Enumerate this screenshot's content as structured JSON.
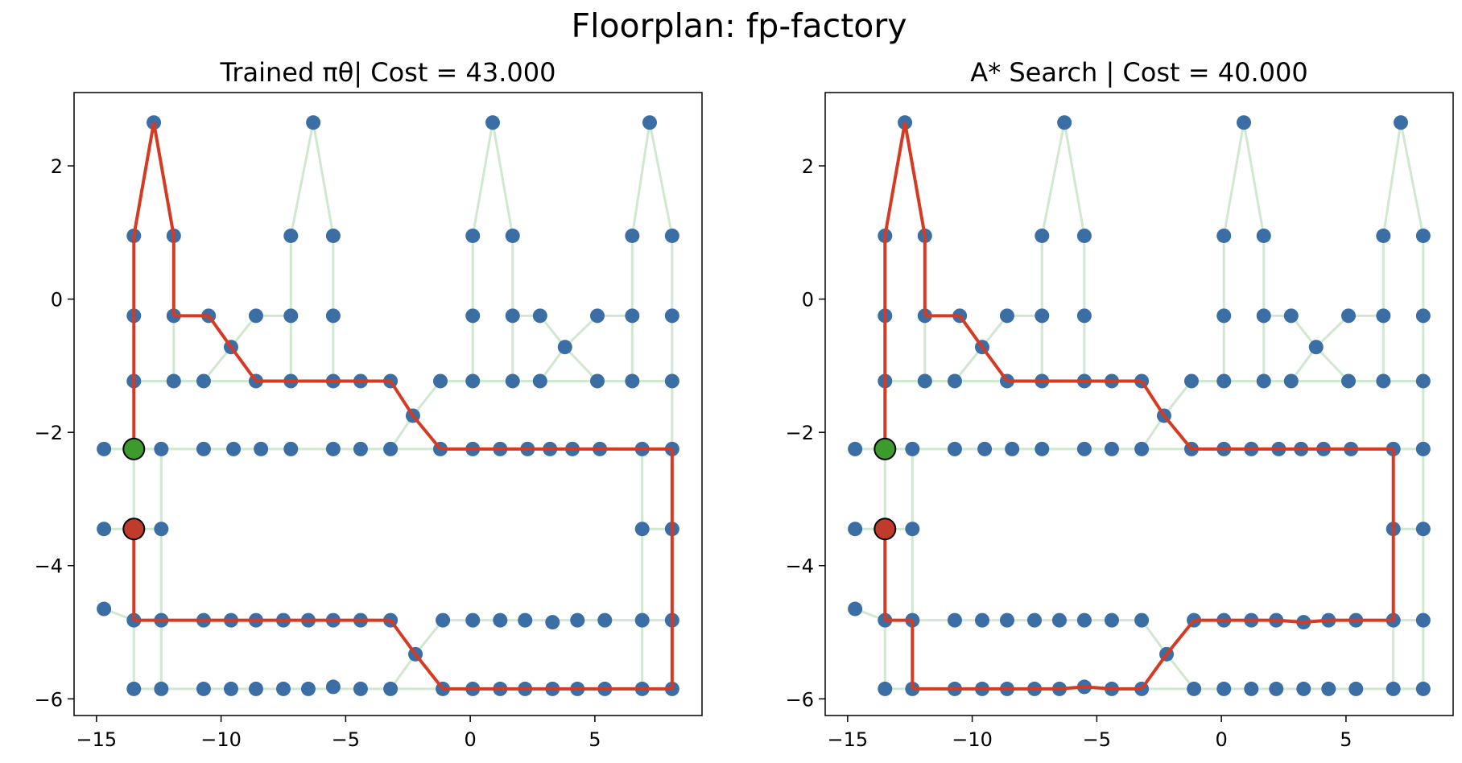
{
  "figure": {
    "title": "Floorplan: fp-factory"
  },
  "colors": {
    "node": "#3a6ea5",
    "edge": "#cfe8cf",
    "path": "#d63a22",
    "start": "#3d9a2c",
    "goal": "#c13b2c"
  },
  "graph": {
    "nodes": [
      [
        -12.7,
        2.65
      ],
      [
        -6.3,
        2.65
      ],
      [
        0.9,
        2.65
      ],
      [
        7.2,
        2.65
      ],
      [
        -13.5,
        0.95
      ],
      [
        -11.9,
        0.95
      ],
      [
        -7.2,
        0.95
      ],
      [
        -5.5,
        0.95
      ],
      [
        0.1,
        0.95
      ],
      [
        1.7,
        0.95
      ],
      [
        6.5,
        0.95
      ],
      [
        8.1,
        0.95
      ],
      [
        -13.5,
        -0.25
      ],
      [
        -11.9,
        -0.25
      ],
      [
        -10.5,
        -0.25
      ],
      [
        -8.6,
        -0.25
      ],
      [
        -7.2,
        -0.25
      ],
      [
        -5.5,
        -0.25
      ],
      [
        0.1,
        -0.25
      ],
      [
        1.7,
        -0.25
      ],
      [
        2.8,
        -0.25
      ],
      [
        5.1,
        -0.25
      ],
      [
        6.5,
        -0.25
      ],
      [
        8.1,
        -0.25
      ],
      [
        -9.6,
        -0.72
      ],
      [
        3.8,
        -0.72
      ],
      [
        -13.5,
        -1.23
      ],
      [
        -11.9,
        -1.23
      ],
      [
        -10.7,
        -1.23
      ],
      [
        -8.6,
        -1.23
      ],
      [
        -7.2,
        -1.23
      ],
      [
        -5.5,
        -1.23
      ],
      [
        -4.4,
        -1.23
      ],
      [
        -3.2,
        -1.23
      ],
      [
        -1.2,
        -1.23
      ],
      [
        0.1,
        -1.23
      ],
      [
        1.7,
        -1.23
      ],
      [
        2.8,
        -1.23
      ],
      [
        5.1,
        -1.23
      ],
      [
        6.5,
        -1.23
      ],
      [
        8.1,
        -1.23
      ],
      [
        -2.3,
        -1.75
      ],
      [
        -14.7,
        -2.25
      ],
      [
        -13.5,
        -2.25
      ],
      [
        -12.4,
        -2.25
      ],
      [
        -10.7,
        -2.25
      ],
      [
        -9.5,
        -2.25
      ],
      [
        -8.4,
        -2.25
      ],
      [
        -7.2,
        -2.25
      ],
      [
        -5.5,
        -2.25
      ],
      [
        -4.4,
        -2.25
      ],
      [
        -3.2,
        -2.25
      ],
      [
        -1.2,
        -2.25
      ],
      [
        0.1,
        -2.25
      ],
      [
        1.2,
        -2.25
      ],
      [
        2.3,
        -2.25
      ],
      [
        3.2,
        -2.25
      ],
      [
        4.1,
        -2.25
      ],
      [
        5.2,
        -2.25
      ],
      [
        6.9,
        -2.25
      ],
      [
        8.1,
        -2.25
      ],
      [
        -14.7,
        -3.45
      ],
      [
        -13.5,
        -3.45
      ],
      [
        -12.4,
        -3.45
      ],
      [
        6.9,
        -3.45
      ],
      [
        8.1,
        -3.45
      ],
      [
        -14.7,
        -4.65
      ],
      [
        -13.5,
        -4.82
      ],
      [
        -12.4,
        -4.82
      ],
      [
        -10.7,
        -4.82
      ],
      [
        -9.6,
        -4.82
      ],
      [
        -8.6,
        -4.82
      ],
      [
        -7.5,
        -4.82
      ],
      [
        -6.5,
        -4.82
      ],
      [
        -5.5,
        -4.82
      ],
      [
        -4.4,
        -4.82
      ],
      [
        -3.2,
        -4.82
      ],
      [
        -1.1,
        -4.82
      ],
      [
        0.1,
        -4.82
      ],
      [
        1.2,
        -4.82
      ],
      [
        2.2,
        -4.82
      ],
      [
        3.3,
        -4.85
      ],
      [
        4.3,
        -4.82
      ],
      [
        5.4,
        -4.82
      ],
      [
        6.9,
        -4.82
      ],
      [
        8.1,
        -4.82
      ],
      [
        -2.2,
        -5.33
      ],
      [
        -13.5,
        -5.85
      ],
      [
        -12.4,
        -5.85
      ],
      [
        -10.7,
        -5.85
      ],
      [
        -9.6,
        -5.85
      ],
      [
        -8.6,
        -5.85
      ],
      [
        -7.5,
        -5.85
      ],
      [
        -6.5,
        -5.85
      ],
      [
        -5.5,
        -5.82
      ],
      [
        -4.4,
        -5.85
      ],
      [
        -3.2,
        -5.85
      ],
      [
        -1.1,
        -5.85
      ],
      [
        0.1,
        -5.85
      ],
      [
        1.2,
        -5.85
      ],
      [
        2.2,
        -5.85
      ],
      [
        3.3,
        -5.85
      ],
      [
        4.3,
        -5.85
      ],
      [
        5.4,
        -5.85
      ],
      [
        6.9,
        -5.85
      ],
      [
        8.1,
        -5.85
      ]
    ],
    "edges": [
      [
        [
          -13.5,
          -2.25
        ],
        [
          -13.5,
          0.95
        ]
      ],
      [
        [
          -13.5,
          0.95
        ],
        [
          -12.7,
          2.65
        ]
      ],
      [
        [
          -12.7,
          2.65
        ],
        [
          -11.9,
          0.95
        ]
      ],
      [
        [
          -11.9,
          0.95
        ],
        [
          -11.9,
          -1.23
        ]
      ],
      [
        [
          -11.9,
          -0.25
        ],
        [
          -10.5,
          -0.25
        ]
      ],
      [
        [
          -8.6,
          -0.25
        ],
        [
          -7.2,
          -0.25
        ]
      ],
      [
        [
          -7.2,
          -0.25
        ],
        [
          -7.2,
          0.95
        ]
      ],
      [
        [
          -7.2,
          0.95
        ],
        [
          -6.3,
          2.65
        ]
      ],
      [
        [
          -6.3,
          2.65
        ],
        [
          -5.5,
          0.95
        ]
      ],
      [
        [
          -5.5,
          0.95
        ],
        [
          -5.5,
          -1.23
        ]
      ],
      [
        [
          -10.5,
          -0.25
        ],
        [
          -9.6,
          -0.72
        ]
      ],
      [
        [
          -9.6,
          -0.72
        ],
        [
          -8.6,
          -1.23
        ]
      ],
      [
        [
          -8.6,
          -0.25
        ],
        [
          -9.6,
          -0.72
        ]
      ],
      [
        [
          -9.6,
          -0.72
        ],
        [
          -10.7,
          -1.23
        ]
      ],
      [
        [
          -7.2,
          -0.25
        ],
        [
          -7.2,
          -1.23
        ]
      ],
      [
        [
          -13.5,
          -1.23
        ],
        [
          -3.2,
          -1.23
        ]
      ],
      [
        [
          -3.2,
          -1.23
        ],
        [
          -2.3,
          -1.75
        ]
      ],
      [
        [
          -2.3,
          -1.75
        ],
        [
          -1.2,
          -2.25
        ]
      ],
      [
        [
          -1.2,
          -1.23
        ],
        [
          -2.3,
          -1.75
        ]
      ],
      [
        [
          -2.3,
          -1.75
        ],
        [
          -3.2,
          -2.25
        ]
      ],
      [
        [
          -1.2,
          -1.23
        ],
        [
          8.1,
          -1.23
        ]
      ],
      [
        [
          0.1,
          -1.23
        ],
        [
          0.1,
          0.95
        ]
      ],
      [
        [
          0.1,
          0.95
        ],
        [
          0.9,
          2.65
        ]
      ],
      [
        [
          0.9,
          2.65
        ],
        [
          1.7,
          0.95
        ]
      ],
      [
        [
          1.7,
          0.95
        ],
        [
          1.7,
          -1.23
        ]
      ],
      [
        [
          1.7,
          -0.25
        ],
        [
          2.8,
          -0.25
        ]
      ],
      [
        [
          2.8,
          -0.25
        ],
        [
          3.8,
          -0.72
        ]
      ],
      [
        [
          3.8,
          -0.72
        ],
        [
          5.1,
          -1.23
        ]
      ],
      [
        [
          5.1,
          -0.25
        ],
        [
          3.8,
          -0.72
        ]
      ],
      [
        [
          3.8,
          -0.72
        ],
        [
          2.8,
          -1.23
        ]
      ],
      [
        [
          5.1,
          -0.25
        ],
        [
          6.5,
          -0.25
        ]
      ],
      [
        [
          6.5,
          -1.23
        ],
        [
          6.5,
          0.95
        ]
      ],
      [
        [
          6.5,
          0.95
        ],
        [
          7.2,
          2.65
        ]
      ],
      [
        [
          7.2,
          2.65
        ],
        [
          8.1,
          0.95
        ]
      ],
      [
        [
          8.1,
          0.95
        ],
        [
          8.1,
          -5.85
        ]
      ],
      [
        [
          -14.7,
          -2.25
        ],
        [
          8.1,
          -2.25
        ]
      ],
      [
        [
          -14.7,
          -3.45
        ],
        [
          -12.4,
          -3.45
        ]
      ],
      [
        [
          -12.4,
          -2.25
        ],
        [
          -12.4,
          -5.85
        ]
      ],
      [
        [
          -13.5,
          -2.25
        ],
        [
          -13.5,
          -5.85
        ]
      ],
      [
        [
          6.9,
          -2.25
        ],
        [
          6.9,
          -5.85
        ]
      ],
      [
        [
          6.9,
          -3.45
        ],
        [
          8.1,
          -3.45
        ]
      ],
      [
        [
          -14.7,
          -4.65
        ],
        [
          -13.5,
          -4.82
        ]
      ],
      [
        [
          -13.5,
          -4.82
        ],
        [
          -3.2,
          -4.82
        ]
      ],
      [
        [
          -3.2,
          -4.82
        ],
        [
          -2.2,
          -5.33
        ]
      ],
      [
        [
          -2.2,
          -5.33
        ],
        [
          -1.1,
          -5.85
        ]
      ],
      [
        [
          -1.1,
          -4.82
        ],
        [
          -2.2,
          -5.33
        ]
      ],
      [
        [
          -2.2,
          -5.33
        ],
        [
          -3.2,
          -5.85
        ]
      ],
      [
        [
          -1.1,
          -4.82
        ],
        [
          8.1,
          -4.82
        ]
      ],
      [
        [
          -13.5,
          -5.85
        ],
        [
          8.1,
          -5.85
        ]
      ]
    ]
  },
  "chart_data": [
    {
      "type": "scatter",
      "title": "Trained πθ| Cost = 43.000",
      "xlim": [
        -15.9,
        9.3
      ],
      "ylim": [
        -6.25,
        3.1
      ],
      "x_ticks": [
        -15,
        -10,
        -5,
        0,
        5
      ],
      "x_tick_labels": [
        "−15",
        "−10",
        "−5",
        "0",
        "5"
      ],
      "y_ticks": [
        2,
        0,
        -2,
        -4,
        -6
      ],
      "y_tick_labels": [
        "2",
        "0",
        "−2",
        "−4",
        "−6"
      ],
      "start": [
        -13.5,
        -2.25
      ],
      "goal": [
        -13.5,
        -3.45
      ],
      "path": [
        [
          -13.5,
          -2.25
        ],
        [
          -13.5,
          -1.23
        ],
        [
          -13.5,
          -0.25
        ],
        [
          -13.5,
          0.95
        ],
        [
          -12.7,
          2.65
        ],
        [
          -11.9,
          0.95
        ],
        [
          -11.9,
          -0.25
        ],
        [
          -10.5,
          -0.25
        ],
        [
          -9.6,
          -0.72
        ],
        [
          -8.6,
          -1.23
        ],
        [
          -7.2,
          -1.23
        ],
        [
          -5.5,
          -1.23
        ],
        [
          -4.4,
          -1.23
        ],
        [
          -3.2,
          -1.23
        ],
        [
          -2.3,
          -1.75
        ],
        [
          -1.2,
          -2.25
        ],
        [
          0.1,
          -2.25
        ],
        [
          1.2,
          -2.25
        ],
        [
          2.3,
          -2.25
        ],
        [
          3.2,
          -2.25
        ],
        [
          4.1,
          -2.25
        ],
        [
          5.2,
          -2.25
        ],
        [
          6.9,
          -2.25
        ],
        [
          8.1,
          -2.25
        ],
        [
          8.1,
          -3.45
        ],
        [
          8.1,
          -4.82
        ],
        [
          8.1,
          -5.85
        ],
        [
          6.9,
          -5.85
        ],
        [
          5.4,
          -5.85
        ],
        [
          4.3,
          -5.85
        ],
        [
          3.3,
          -5.85
        ],
        [
          2.2,
          -5.85
        ],
        [
          1.2,
          -5.85
        ],
        [
          0.1,
          -5.85
        ],
        [
          -1.1,
          -5.85
        ],
        [
          -2.2,
          -5.33
        ],
        [
          -3.2,
          -4.82
        ],
        [
          -4.4,
          -4.82
        ],
        [
          -5.5,
          -4.82
        ],
        [
          -6.5,
          -4.82
        ],
        [
          -7.5,
          -4.82
        ],
        [
          -8.6,
          -4.82
        ],
        [
          -9.6,
          -4.82
        ],
        [
          -10.7,
          -4.82
        ],
        [
          -12.4,
          -4.82
        ],
        [
          -13.5,
          -4.82
        ],
        [
          -13.5,
          -3.45
        ]
      ]
    },
    {
      "type": "scatter",
      "title": "A* Search | Cost = 40.000",
      "xlim": [
        -15.9,
        9.3
      ],
      "ylim": [
        -6.25,
        3.1
      ],
      "x_ticks": [
        -15,
        -10,
        -5,
        0,
        5
      ],
      "x_tick_labels": [
        "−15",
        "−10",
        "−5",
        "0",
        "5"
      ],
      "y_ticks": [
        2,
        0,
        -2,
        -4,
        -6
      ],
      "y_tick_labels": [
        "2",
        "0",
        "−2",
        "−4",
        "−6"
      ],
      "start": [
        -13.5,
        -2.25
      ],
      "goal": [
        -13.5,
        -3.45
      ],
      "path": [
        [
          -13.5,
          -2.25
        ],
        [
          -13.5,
          -1.23
        ],
        [
          -13.5,
          -0.25
        ],
        [
          -13.5,
          0.95
        ],
        [
          -12.7,
          2.65
        ],
        [
          -11.9,
          0.95
        ],
        [
          -11.9,
          -0.25
        ],
        [
          -10.5,
          -0.25
        ],
        [
          -9.6,
          -0.72
        ],
        [
          -8.6,
          -1.23
        ],
        [
          -7.2,
          -1.23
        ],
        [
          -5.5,
          -1.23
        ],
        [
          -4.4,
          -1.23
        ],
        [
          -3.2,
          -1.23
        ],
        [
          -2.3,
          -1.75
        ],
        [
          -1.2,
          -2.25
        ],
        [
          0.1,
          -2.25
        ],
        [
          1.2,
          -2.25
        ],
        [
          2.3,
          -2.25
        ],
        [
          3.2,
          -2.25
        ],
        [
          4.1,
          -2.25
        ],
        [
          5.2,
          -2.25
        ],
        [
          6.9,
          -2.25
        ],
        [
          6.9,
          -3.45
        ],
        [
          6.9,
          -4.82
        ],
        [
          5.4,
          -4.82
        ],
        [
          4.3,
          -4.82
        ],
        [
          3.3,
          -4.85
        ],
        [
          2.2,
          -4.82
        ],
        [
          1.2,
          -4.82
        ],
        [
          0.1,
          -4.82
        ],
        [
          -1.1,
          -4.82
        ],
        [
          -2.2,
          -5.33
        ],
        [
          -3.2,
          -5.85
        ],
        [
          -4.4,
          -5.85
        ],
        [
          -5.5,
          -5.82
        ],
        [
          -6.5,
          -5.85
        ],
        [
          -7.5,
          -5.85
        ],
        [
          -8.6,
          -5.85
        ],
        [
          -9.6,
          -5.85
        ],
        [
          -10.7,
          -5.85
        ],
        [
          -12.4,
          -5.85
        ],
        [
          -12.4,
          -4.82
        ],
        [
          -13.5,
          -4.82
        ],
        [
          -13.5,
          -3.45
        ]
      ]
    }
  ]
}
